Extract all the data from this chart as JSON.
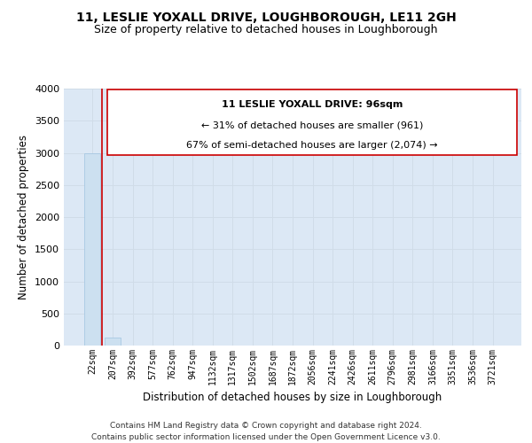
{
  "title": "11, LESLIE YOXALL DRIVE, LOUGHBOROUGH, LE11 2GH",
  "subtitle": "Size of property relative to detached houses in Loughborough",
  "xlabel": "Distribution of detached houses by size in Loughborough",
  "ylabel": "Number of detached properties",
  "categories": [
    "22sqm",
    "207sqm",
    "392sqm",
    "577sqm",
    "762sqm",
    "947sqm",
    "1132sqm",
    "1317sqm",
    "1502sqm",
    "1687sqm",
    "1872sqm",
    "2056sqm",
    "2241sqm",
    "2426sqm",
    "2611sqm",
    "2796sqm",
    "2981sqm",
    "3166sqm",
    "3351sqm",
    "3536sqm",
    "3721sqm"
  ],
  "values": [
    2997,
    120,
    0,
    0,
    0,
    0,
    0,
    0,
    0,
    0,
    0,
    0,
    0,
    0,
    0,
    0,
    0,
    0,
    0,
    0,
    0
  ],
  "bar_color": "#cce0f0",
  "bar_edge_color": "#a0c4e0",
  "ylim": [
    0,
    4000
  ],
  "yticks": [
    0,
    500,
    1000,
    1500,
    2000,
    2500,
    3000,
    3500,
    4000
  ],
  "property_label": "11 LESLIE YOXALL DRIVE: 96sqm",
  "annotation_line1": "← 31% of detached houses are smaller (961)",
  "annotation_line2": "67% of semi-detached houses are larger (2,074) →",
  "annotation_box_color": "#ffffff",
  "annotation_box_edge": "#cc0000",
  "red_line_color": "#cc0000",
  "footer_line1": "Contains HM Land Registry data © Crown copyright and database right 2024.",
  "footer_line2": "Contains public sector information licensed under the Open Government Licence v3.0.",
  "grid_color": "#d0dce8",
  "background_color": "#dce8f5",
  "title_fontsize": 10,
  "subtitle_fontsize": 9,
  "axis_label_fontsize": 8.5,
  "tick_fontsize": 7,
  "footer_fontsize": 6.5,
  "annotation_fontsize": 8
}
